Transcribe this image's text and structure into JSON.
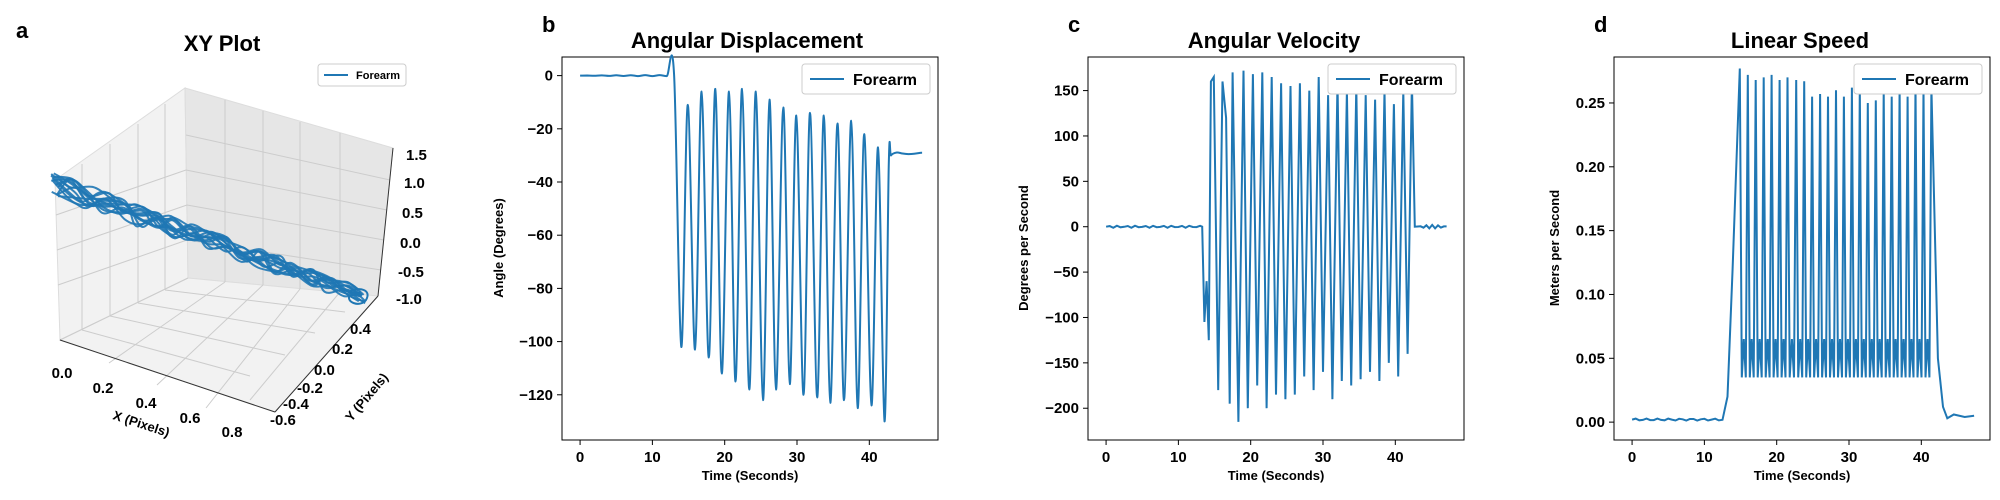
{
  "colors": {
    "series": "#1f77b4",
    "pane_gray": "#f2f2f2",
    "grid": "#cccccc"
  },
  "chart_data": [
    {
      "letter": "a",
      "type": "line3d",
      "title": "XY Plot",
      "xlabel": "X (Pixels)",
      "ylabel": "Y (Pixels)",
      "x_ticks": [
        "0.0",
        "0.2",
        "0.4",
        "0.6",
        "0.8"
      ],
      "y_ticks": [
        "-0.6",
        "-0.4",
        "-0.2",
        "0.0",
        "0.2",
        "0.4"
      ],
      "z_ticks": [
        "-1.0",
        "-0.5",
        "0.0",
        "0.5",
        "1.0",
        "1.5"
      ],
      "xlim": [
        0,
        0.9
      ],
      "ylim": [
        -0.7,
        0.45
      ],
      "zlim": [
        -1.0,
        1.5
      ],
      "legend": {
        "label": "Forearm",
        "position": "top-right"
      },
      "series": [
        {
          "name": "Forearm",
          "x_range": [
            0.0,
            0.9
          ],
          "y_range": [
            -0.3,
            0.4
          ],
          "z_range": [
            -1.0,
            1.3
          ]
        }
      ]
    },
    {
      "letter": "b",
      "type": "line",
      "title": "Angular Displacement",
      "xlabel": "Time (Seconds)",
      "ylabel": "Angle (Degrees)",
      "xlim": [
        -2.5,
        49.5
      ],
      "ylim": [
        -137,
        7
      ],
      "x_ticks": [
        0,
        10,
        20,
        30,
        40
      ],
      "y_ticks": [
        0,
        -20,
        -40,
        -60,
        -80,
        -100,
        -120
      ],
      "y_tick_labels": [
        "0",
        "−20",
        "−40",
        "−60",
        "−80",
        "−100",
        "−120"
      ],
      "legend": {
        "label": "Forearm",
        "position": "top-right"
      },
      "series": [
        {
          "name": "Forearm",
          "flat": {
            "from": 0,
            "to": 13.4,
            "value": 0
          },
          "peaks_t": [
            14.9,
            16.8,
            18.7,
            20.6,
            22.4,
            24.3,
            26.2,
            28.1,
            29.9,
            31.8,
            33.7,
            35.6,
            37.5,
            39.3,
            41.2
          ],
          "peaks_v": [
            -11,
            -6,
            -5,
            -6,
            -5,
            -6,
            -9,
            -12,
            -15,
            -14,
            -15,
            -18,
            -17,
            -22,
            -27
          ],
          "troughs_t": [
            14.0,
            15.9,
            17.8,
            19.6,
            21.5,
            23.4,
            25.3,
            27.1,
            29.0,
            30.9,
            32.8,
            34.6,
            36.5,
            38.4,
            40.3,
            42.1
          ],
          "troughs_v": [
            -102,
            -103,
            -106,
            -112,
            -115,
            -118,
            -122,
            -118,
            -116,
            -120,
            -121,
            -123,
            -122,
            -125,
            -124,
            -130
          ],
          "tail": {
            "from": 43.0,
            "to": 47.3,
            "value": -29
          }
        }
      ]
    },
    {
      "letter": "c",
      "type": "line",
      "title": "Angular Velocity",
      "xlabel": "Time (Seconds)",
      "ylabel": "Degrees per Second",
      "xlim": [
        -2.5,
        49.5
      ],
      "ylim": [
        -235,
        187
      ],
      "x_ticks": [
        0,
        10,
        20,
        30,
        40
      ],
      "y_ticks": [
        150,
        100,
        50,
        0,
        -50,
        -100,
        -150,
        -200
      ],
      "y_tick_labels": [
        "150",
        "100",
        "50",
        "0",
        "−50",
        "−100",
        "−150",
        "−200"
      ],
      "legend": {
        "label": "Forearm",
        "position": "top-right"
      },
      "series": [
        {
          "name": "Forearm",
          "flat": {
            "from": 0,
            "to": 13.3,
            "value": 0
          },
          "points_t": [
            13.3,
            13.6,
            13.9,
            14.2,
            14.5,
            14.9,
            15.5,
            16.1,
            16.6,
            17.1,
            17.5,
            18.3,
            19.0,
            19.6,
            20.3,
            20.9,
            21.6,
            22.2,
            22.9,
            23.5,
            24.2,
            24.8,
            25.5,
            26.1,
            26.8,
            27.4,
            28.1,
            28.7,
            29.4,
            30.0,
            30.7,
            31.3,
            32.0,
            32.6,
            33.3,
            33.9,
            34.6,
            35.2,
            35.9,
            36.5,
            37.2,
            37.8,
            38.5,
            39.1,
            39.8,
            40.4,
            41.1,
            41.7,
            42.3,
            42.7
          ],
          "points_v": [
            0,
            -105,
            -60,
            -125,
            160,
            165,
            -180,
            160,
            120,
            -195,
            170,
            -215,
            172,
            -200,
            168,
            -175,
            170,
            -200,
            165,
            -185,
            158,
            -190,
            155,
            -185,
            158,
            -165,
            150,
            -180,
            165,
            -160,
            145,
            -190,
            160,
            -170,
            150,
            -175,
            155,
            -168,
            145,
            -160,
            140,
            -170,
            150,
            -150,
            135,
            -165,
            150,
            -140,
            160,
            0
          ],
          "tail": {
            "from": 42.7,
            "to": 47.3,
            "value": 0
          }
        }
      ]
    },
    {
      "letter": "d",
      "type": "line",
      "title": "Linear Speed",
      "xlabel": "Time (Seconds)",
      "ylabel": "Meters per Second",
      "xlim": [
        -2.5,
        49.5
      ],
      "ylim": [
        -0.014,
        0.286
      ],
      "x_ticks": [
        0,
        10,
        20,
        30,
        40
      ],
      "y_ticks": [
        0,
        0.05,
        0.1,
        0.15,
        0.2,
        0.25
      ],
      "y_tick_labels": [
        "0.00",
        "0.05",
        "0.10",
        "0.15",
        "0.20",
        "0.25"
      ],
      "legend": {
        "label": "Forearm",
        "position": "top-right"
      },
      "series": [
        {
          "name": "Forearm",
          "flat": {
            "from": 0,
            "to": 12.5,
            "value": 0.002
          },
          "peaks_t": [
            14.9,
            16.0,
            17.1,
            18.2,
            19.3,
            20.4,
            21.5,
            22.7,
            23.8,
            24.9,
            26.0,
            27.1,
            28.2,
            29.3,
            30.4,
            31.5,
            32.6,
            33.7,
            34.8,
            35.9,
            37.0,
            38.1,
            39.2,
            40.3,
            41.4
          ],
          "peaks_v": [
            0.277,
            0.272,
            0.268,
            0.27,
            0.272,
            0.268,
            0.27,
            0.268,
            0.267,
            0.255,
            0.257,
            0.255,
            0.26,
            0.255,
            0.262,
            0.262,
            0.25,
            0.252,
            0.26,
            0.255,
            0.262,
            0.255,
            0.265,
            0.262,
            0.262
          ],
          "dip_v": 0.035,
          "mid_v": 0.065,
          "tail_t": [
            42.3,
            43.0,
            43.6,
            44.5,
            46.0,
            47.3
          ],
          "tail_v": [
            0.05,
            0.012,
            0.003,
            0.006,
            0.004,
            0.005
          ]
        }
      ]
    }
  ]
}
